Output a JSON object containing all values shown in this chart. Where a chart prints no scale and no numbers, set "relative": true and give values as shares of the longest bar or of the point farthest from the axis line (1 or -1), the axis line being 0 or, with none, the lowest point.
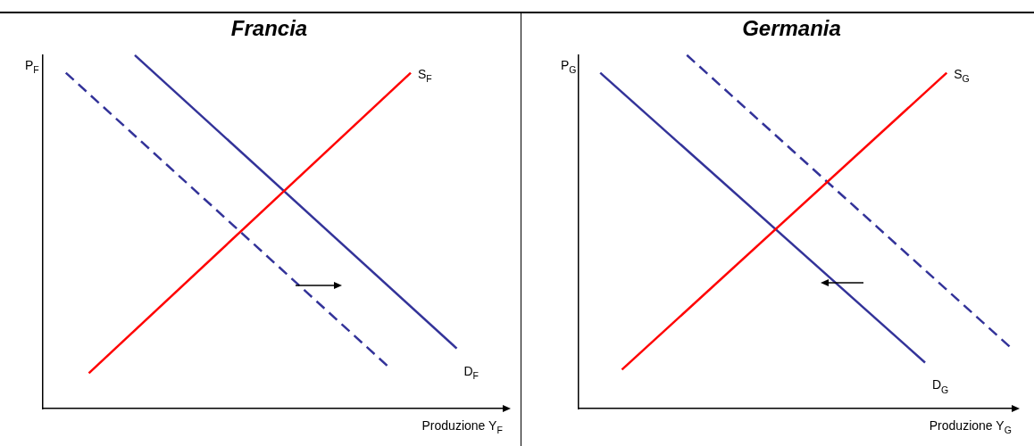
{
  "chart_data": [
    {
      "type": "line",
      "title": "Francia",
      "xlabel": "Produzione Y$_{F}$",
      "ylabel": "P$_{F}$",
      "relative": true,
      "legend": false,
      "categories": [
        null,
        null,
        null,
        null,
        null,
        null,
        null,
        null,
        null,
        null,
        null,
        null,
        null,
        null,
        null,
        null,
        null,
        null,
        null,
        null,
        null
      ],
      "series": [
        {
          "name": "S$_{F}$",
          "color": "#ff0000",
          "values": [
            null,
            null,
            0.1,
            null,
            null,
            null,
            null,
            null,
            null,
            null,
            null,
            null,
            null,
            null,
            null,
            null,
            0.95,
            null,
            null,
            null,
            null
          ]
        },
        {
          "name": "D$_{F}$",
          "color": "#333399",
          "values": [
            null,
            null,
            null,
            null,
            1,
            null,
            null,
            null,
            null,
            null,
            null,
            null,
            null,
            null,
            null,
            null,
            null,
            null,
            0.17,
            null,
            null
          ]
        },
        {
          "color": "#333399",
          "line_style": "dashed",
          "values": [
            null,
            0.95,
            null,
            null,
            null,
            null,
            null,
            null,
            null,
            null,
            null,
            null,
            null,
            null,
            null,
            0.12,
            null,
            null,
            null,
            null,
            null
          ]
        }
      ]
    },
    {
      "type": "line",
      "title": "Germania",
      "xlabel": "Produzione Y$_{G}$",
      "ylabel": "P$_{G}$",
      "relative": true,
      "legend": false,
      "categories": [
        null,
        null,
        null,
        null,
        null,
        null,
        null,
        null,
        null,
        null,
        null,
        null,
        null,
        null,
        null,
        null,
        null,
        null,
        null,
        null,
        null
      ],
      "series": [
        {
          "name": "S$_{G}$",
          "color": "#ff0000",
          "values": [
            null,
            null,
            0.11,
            null,
            null,
            null,
            null,
            null,
            null,
            null,
            null,
            null,
            null,
            null,
            null,
            null,
            null,
            0.95,
            null,
            null,
            null
          ]
        },
        {
          "name": "D$_{G}$",
          "color": "#333399",
          "values": [
            null,
            0.95,
            null,
            null,
            null,
            null,
            null,
            null,
            null,
            null,
            null,
            null,
            null,
            null,
            null,
            null,
            0.13,
            null,
            null,
            null,
            null
          ]
        },
        {
          "color": "#333399",
          "line_style": "dashed",
          "values": [
            null,
            null,
            null,
            null,
            null,
            1,
            null,
            null,
            null,
            null,
            null,
            null,
            null,
            null,
            null,
            null,
            null,
            null,
            null,
            null,
            0.17
          ]
        }
      ]
    }
  ]
}
